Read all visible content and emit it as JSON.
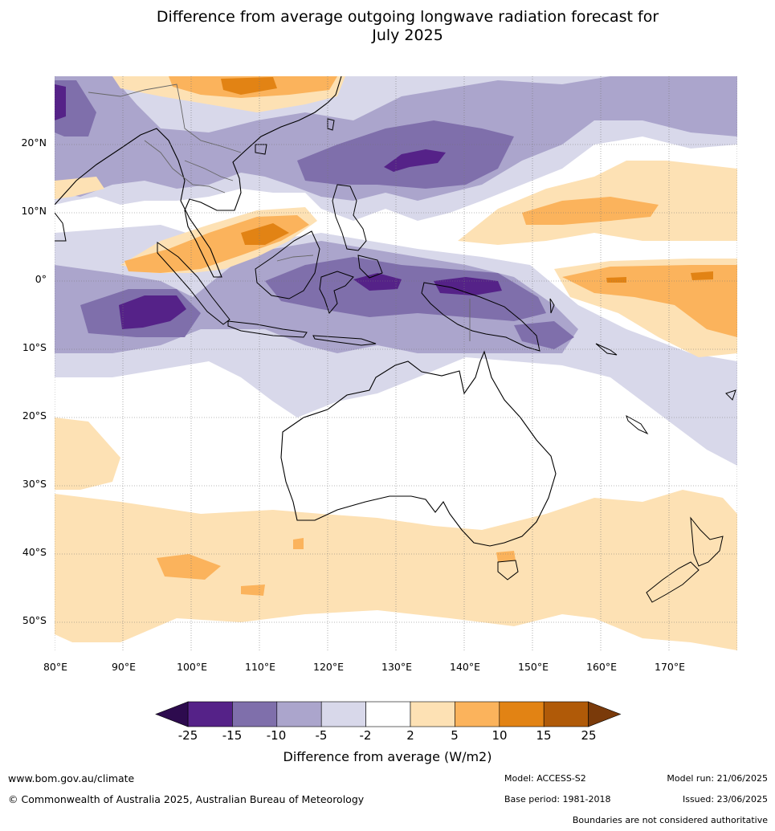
{
  "title": {
    "line1": "Difference from average outgoing longwave radiation forecast for",
    "line2": "July 2025"
  },
  "axes": {
    "lat_labels": [
      "20°N",
      "10°N",
      "0°",
      "10°S",
      "20°S",
      "30°S",
      "40°S",
      "50°S"
    ],
    "lon_labels": [
      "80°E",
      "90°E",
      "100°E",
      "110°E",
      "120°E",
      "130°E",
      "140°E",
      "150°E",
      "160°E",
      "170°E"
    ]
  },
  "colorbar": {
    "ticks": [
      "-25",
      "-15",
      "-10",
      "-5",
      "-2",
      "2",
      "5",
      "10",
      "15",
      "25"
    ],
    "colors": [
      "#552288",
      "#7f6fab",
      "#aba5cc",
      "#d8d8ea",
      "#ffffff",
      "#fde1b4",
      "#fbb35c",
      "#e28314",
      "#b05a08"
    ],
    "under_color": "#2d0b4e",
    "over_color": "#7a3a0a",
    "label": "Difference from average (W/m2)"
  },
  "footer": {
    "website": "www.bom.gov.au/climate",
    "copyright": "© Commonwealth of Australia 2025, Australian Bureau of Meteorology",
    "model": "Model: ACCESS-S2",
    "base_period": "Base period: 1981-2018",
    "model_run": "Model run: 21/06/2025",
    "issued": "Issued: 23/06/2025",
    "disclaimer": "Boundaries are not considered authoritative"
  }
}
